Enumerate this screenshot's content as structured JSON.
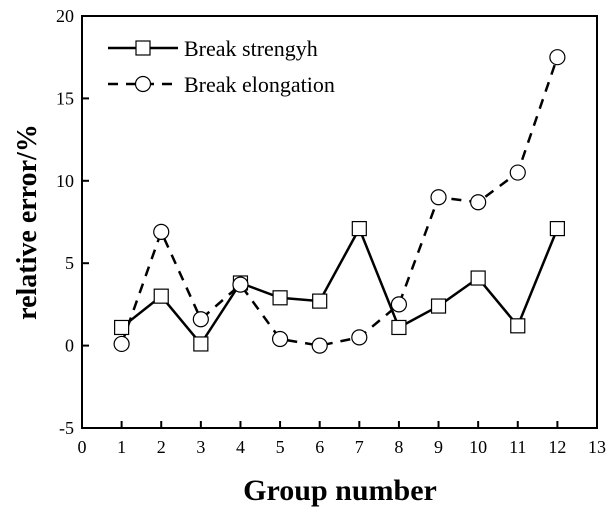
{
  "chart_data": {
    "type": "line",
    "title": "",
    "xlabel": "Group number",
    "ylabel": "relative error/%",
    "xlim": [
      0,
      13
    ],
    "ylim": [
      -5,
      20
    ],
    "xticks": [
      0,
      1,
      2,
      3,
      4,
      5,
      6,
      7,
      8,
      9,
      10,
      11,
      12,
      13
    ],
    "yticks": [
      -5,
      0,
      5,
      10,
      15,
      20
    ],
    "grid": false,
    "legend_position": "top-left",
    "series": [
      {
        "name": "Break strengyh",
        "line_style": "solid",
        "marker": "square",
        "x": [
          1,
          2,
          3,
          4,
          5,
          6,
          7,
          8,
          9,
          10,
          11,
          12
        ],
        "y": [
          1.1,
          3.0,
          0.1,
          3.8,
          2.9,
          2.7,
          7.1,
          1.1,
          2.4,
          4.1,
          1.2,
          7.1
        ]
      },
      {
        "name": "Break elongation",
        "line_style": "dashed",
        "marker": "circle",
        "x": [
          1,
          2,
          3,
          4,
          5,
          6,
          7,
          8,
          9,
          10,
          11,
          12
        ],
        "y": [
          0.1,
          6.9,
          1.6,
          3.7,
          0.4,
          0.0,
          0.5,
          2.5,
          9.0,
          8.7,
          10.5,
          17.5
        ]
      }
    ]
  }
}
